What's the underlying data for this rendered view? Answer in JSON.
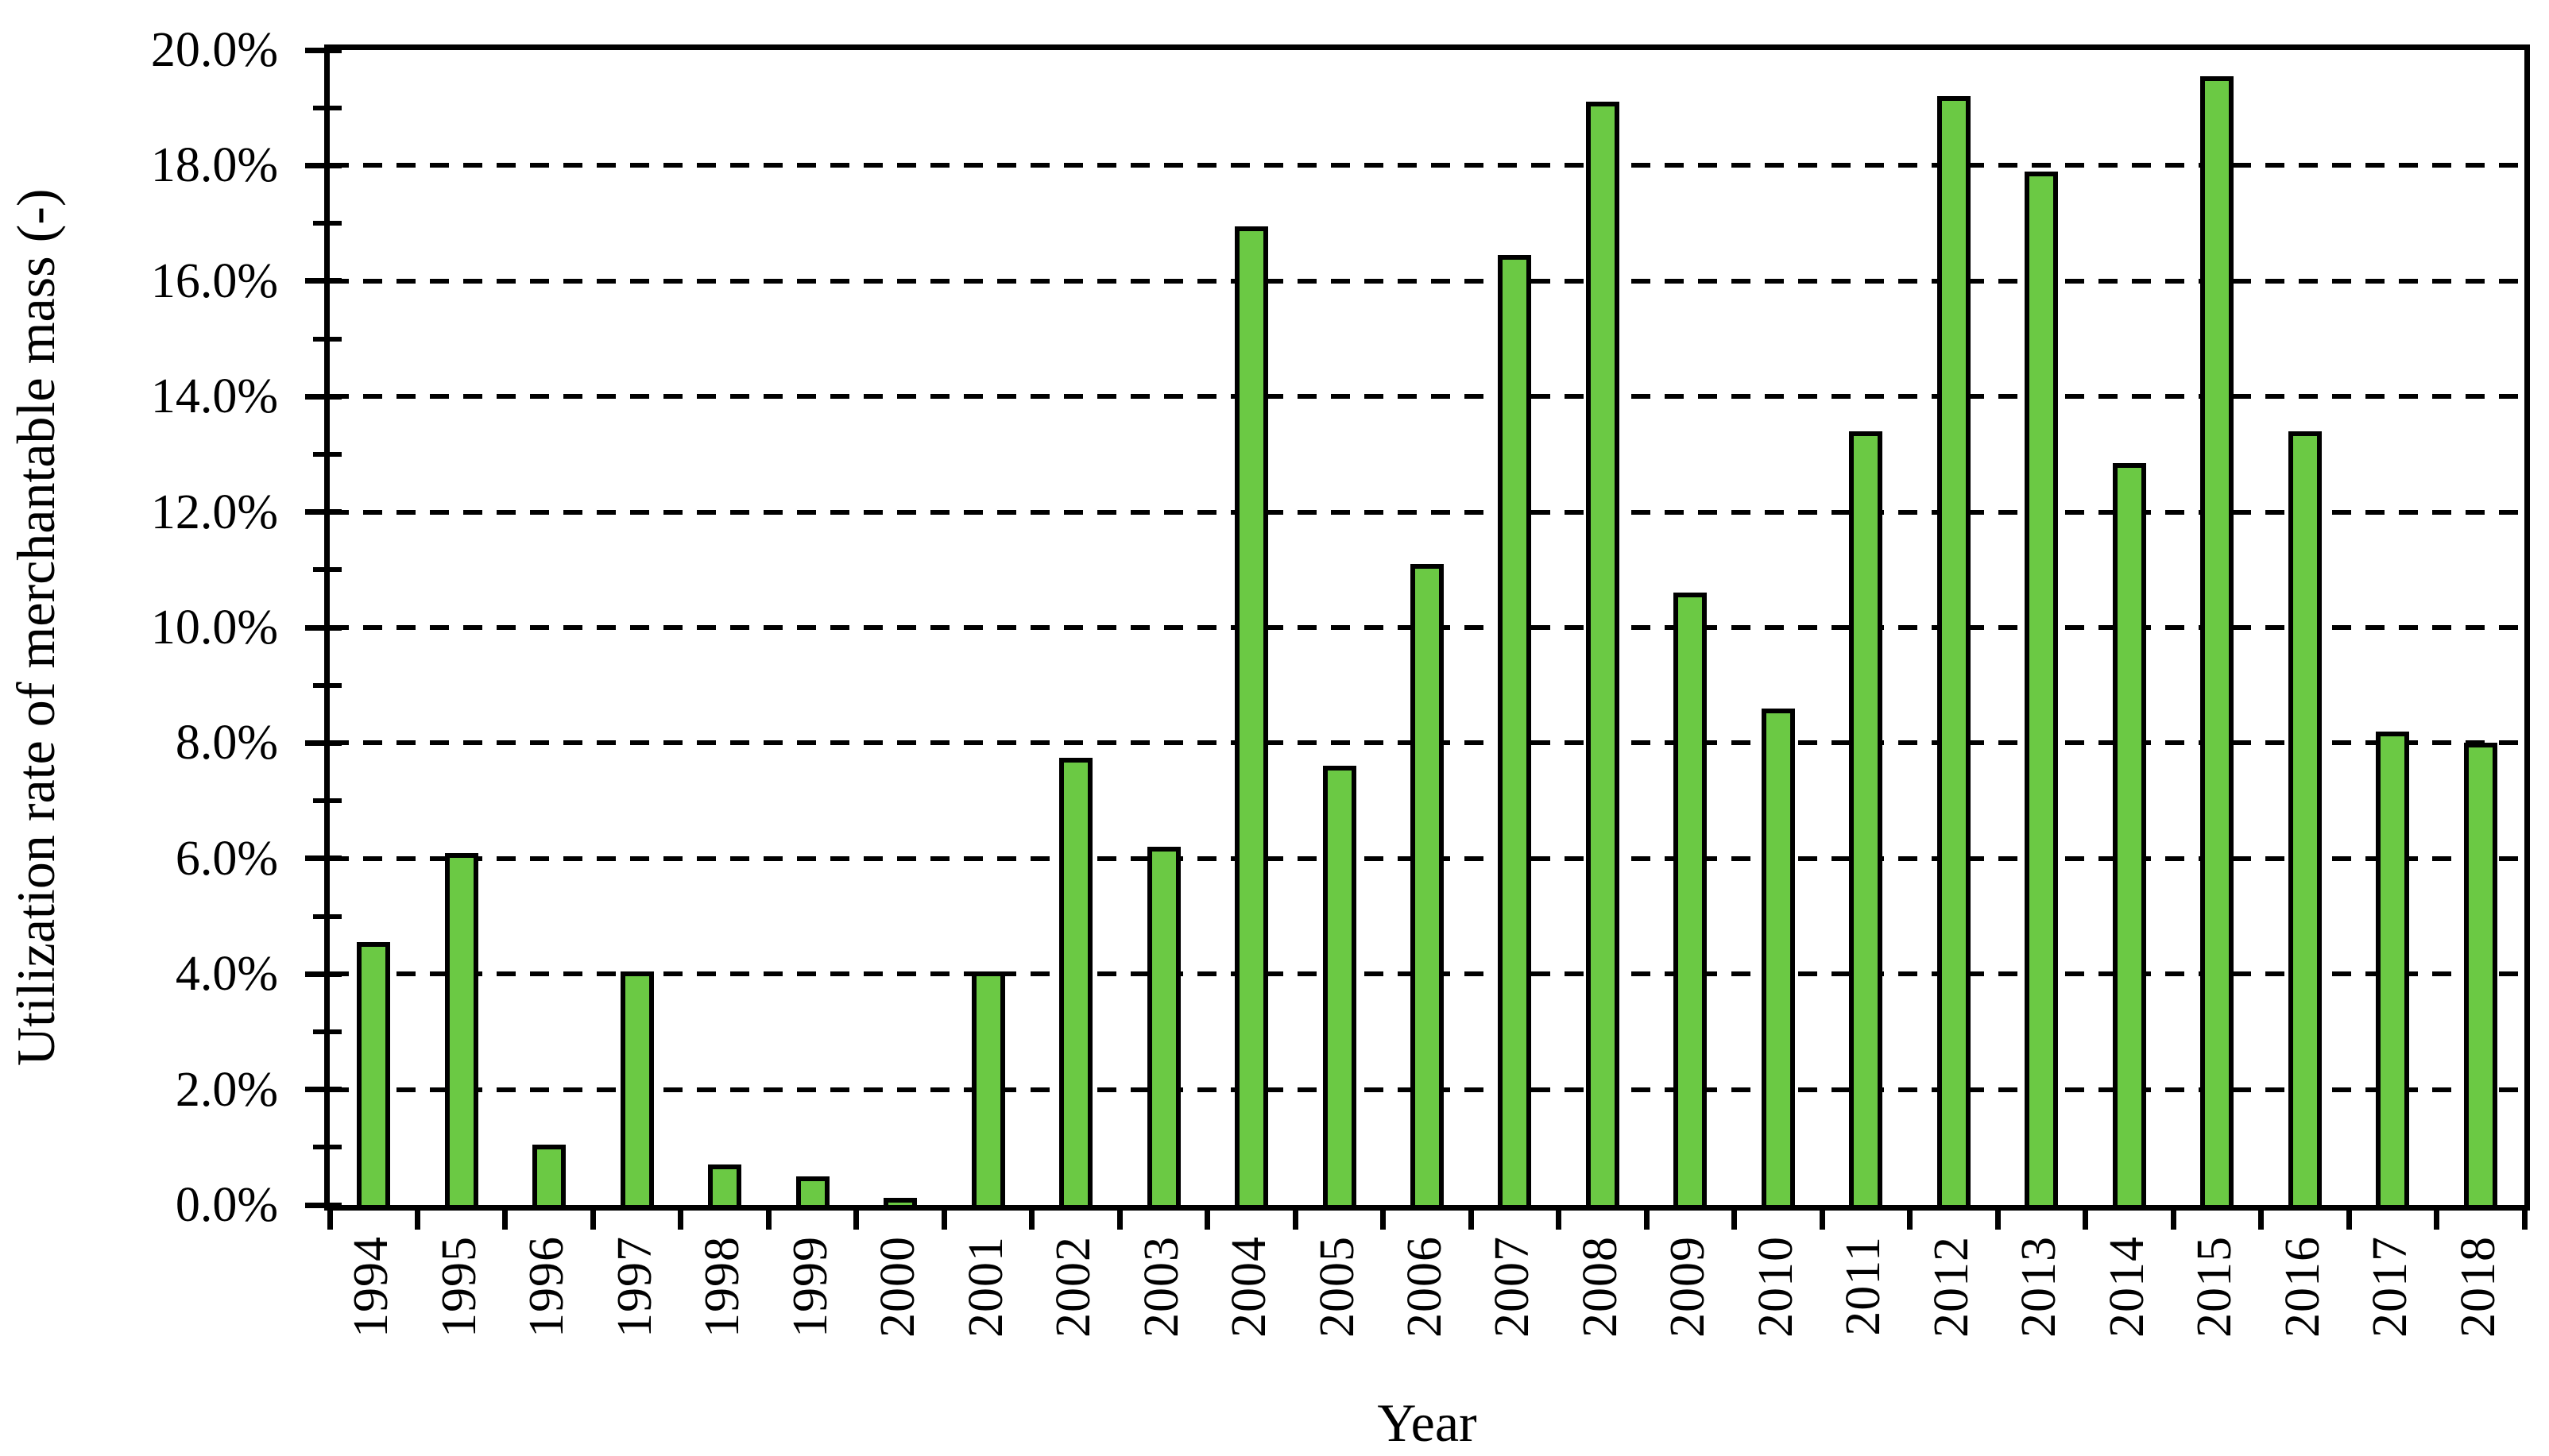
{
  "figure": {
    "background": "#ffffff",
    "bar_fill": "#6BC944",
    "bar_border": "#000000",
    "axis_color": "#000000",
    "gridline_color": "#000000",
    "gridline_style": "dashed"
  },
  "chart_data": {
    "type": "bar",
    "title": "",
    "xlabel": "Year",
    "ylabel": "Utilization rate of merchantable mass (-)",
    "categories": [
      "1994",
      "1995",
      "1996",
      "1997",
      "1998",
      "1999",
      "2000",
      "2001",
      "2002",
      "2003",
      "2004",
      "2005",
      "2006",
      "2007",
      "2008",
      "2009",
      "2010",
      "2011",
      "2012",
      "2013",
      "2014",
      "2015",
      "2016",
      "2017",
      "2018"
    ],
    "values": [
      4.55,
      6.1,
      1.05,
      4.05,
      0.7,
      0.5,
      0.05,
      4.05,
      7.75,
      6.2,
      16.95,
      7.6,
      11.1,
      16.45,
      19.1,
      10.6,
      8.6,
      13.4,
      19.2,
      17.9,
      12.85,
      19.55,
      13.4,
      8.2,
      8.0
    ],
    "ylim": [
      0,
      20
    ],
    "ytick_step_major": 2,
    "ytick_step_minor": 1,
    "ytick_labels": [
      "0.0%",
      "2.0%",
      "4.0%",
      "6.0%",
      "8.0%",
      "10.0%",
      "12.0%",
      "14.0%",
      "16.0%",
      "18.0%",
      "20.0%"
    ],
    "grid": "horizontal dashed lines at every 2% from 2% to 18%",
    "legend": "none",
    "bar_unit": "percent"
  }
}
